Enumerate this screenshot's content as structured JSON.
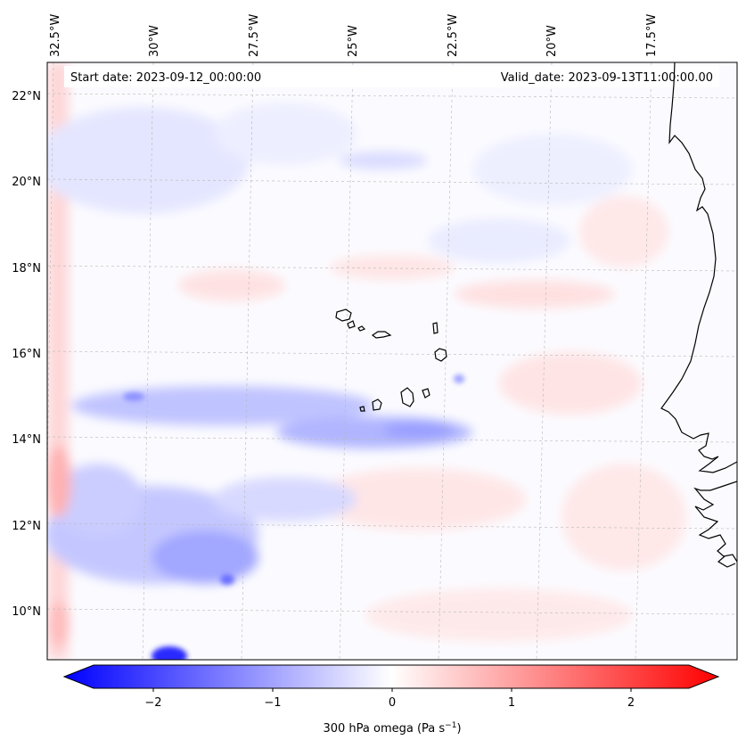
{
  "header": {
    "start_date": "Start date: 2023-09-12_00:00:00",
    "valid_date": "Valid_date: 2023-09-13T11:00:00.00"
  },
  "map": {
    "longitude_labels": [
      "32.5°W",
      "30°W",
      "27.5°W",
      "25°W",
      "22.5°W",
      "20°W",
      "17.5°W"
    ],
    "latitude_labels": [
      "22°N",
      "20°N",
      "18°N",
      "16°N",
      "14°N",
      "12°N",
      "10°N"
    ],
    "extent": {
      "lon_min": -33.0,
      "lon_max": -15.4,
      "lat_min": 8.8,
      "lat_max": 22.8
    }
  },
  "colorbar": {
    "label": "300 hPa omega (Pa s",
    "label_exponent": "−1",
    "label_close": ")",
    "ticks": [
      "−2",
      "−1",
      "0",
      "1",
      "2"
    ],
    "range": [
      -2.75,
      2.75
    ],
    "low_color": "#0000ff",
    "mid_color": "#ffffff",
    "high_color": "#ff0000"
  },
  "field": {
    "units": "Pa s-1",
    "features": [
      {
        "name": "subsidence band north edge",
        "value": 0.5
      },
      {
        "name": "ascent band 14N",
        "value": -0.9
      },
      {
        "name": "ascent region 11-12N",
        "value": -1.2
      },
      {
        "name": "strong ascent spot 9N",
        "value": -2.2
      },
      {
        "name": "western boundary subsidence",
        "value": 0.8
      }
    ]
  }
}
